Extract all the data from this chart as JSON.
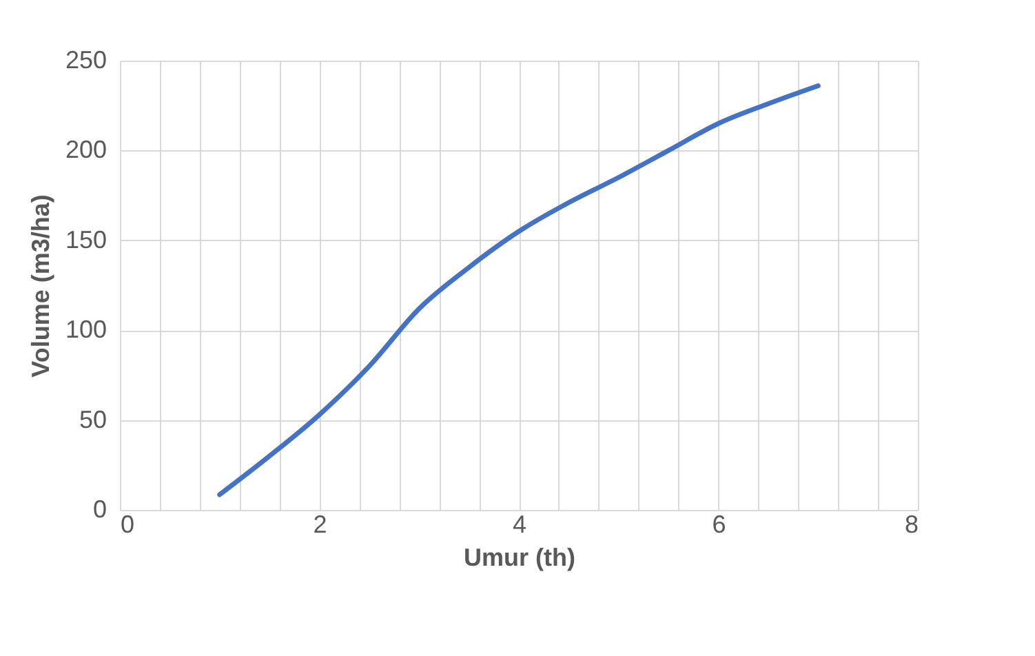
{
  "chart_data": {
    "type": "line",
    "xlabel": "Umur (th)",
    "ylabel": "Volume (m3/ha)",
    "x": [
      1,
      1.5,
      2,
      2.5,
      3,
      3.5,
      4,
      4.5,
      5,
      5.5,
      6,
      6.5,
      7
    ],
    "series": [
      {
        "color": "#4472c4",
        "values": [
          8.5,
          30,
          53,
          80,
          112,
          135,
          155,
          171,
          185,
          200,
          215,
          226,
          236
        ]
      }
    ],
    "xlim": [
      0,
      8
    ],
    "ylim": [
      0,
      250
    ],
    "xticks": [
      0,
      {
        "value": 0.4,
        "label": null
      },
      {
        "value": 0.8,
        "label": null
      },
      {
        "value": 1.2,
        "label": null
      },
      {
        "value": 1.6,
        "label": null
      },
      2,
      {
        "value": 2.4,
        "label": null
      },
      {
        "value": 2.8,
        "label": null
      },
      {
        "value": 3.2,
        "label": null
      },
      {
        "value": 3.6,
        "label": null
      },
      4,
      {
        "value": 4.4,
        "label": null
      },
      {
        "value": 4.8,
        "label": null
      },
      {
        "value": 5.2,
        "label": null
      },
      {
        "value": 5.6,
        "label": null
      },
      6,
      {
        "value": 6.4,
        "label": null
      },
      {
        "value": 6.8,
        "label": null
      },
      {
        "value": 7.2,
        "label": null
      },
      {
        "value": 7.6,
        "label": null
      },
      8
    ],
    "yticks": [
      0,
      50,
      100,
      150,
      200,
      250
    ],
    "grid": true,
    "legend": false,
    "marker": "none",
    "line_style": "solid"
  }
}
